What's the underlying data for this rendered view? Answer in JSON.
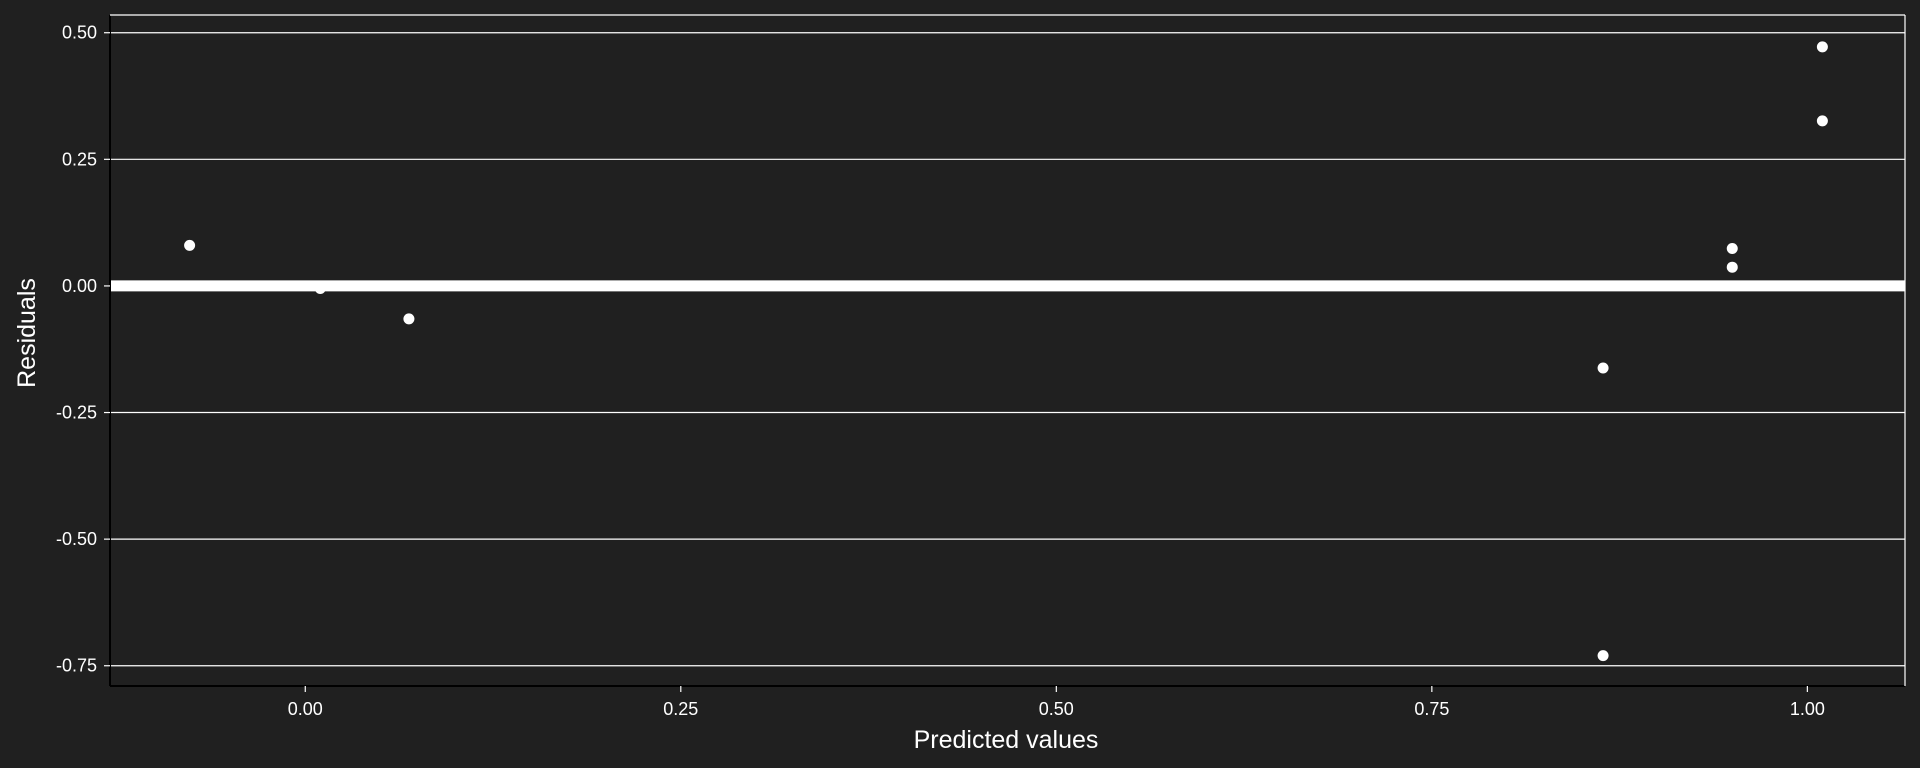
{
  "chart_data": {
    "type": "scatter",
    "xlabel": "Predicted values",
    "ylabel": "Residuals",
    "xlim": [
      -0.13,
      1.065
    ],
    "ylim": [
      -0.79,
      0.535
    ],
    "x_ticks": [
      "0.00",
      "0.25",
      "0.50",
      "0.75",
      "1.00"
    ],
    "x_tick_values": [
      0.0,
      0.25,
      0.5,
      0.75,
      1.0
    ],
    "y_ticks": [
      "0.50",
      "0.25",
      "0.00",
      "-0.25",
      "-0.50",
      "-0.75"
    ],
    "y_tick_values": [
      0.5,
      0.25,
      0.0,
      -0.25,
      -0.5,
      -0.75
    ],
    "grid": "horizontal",
    "reference_line": 0.0,
    "points": [
      {
        "x": -0.077,
        "y": 0.08
      },
      {
        "x": 0.01,
        "y": -0.005
      },
      {
        "x": 0.069,
        "y": -0.065
      },
      {
        "x": 0.864,
        "y": -0.162
      },
      {
        "x": 0.864,
        "y": -0.73
      },
      {
        "x": 0.95,
        "y": 0.074
      },
      {
        "x": 0.95,
        "y": 0.037
      },
      {
        "x": 1.01,
        "y": 0.472
      },
      {
        "x": 1.01,
        "y": 0.326
      }
    ],
    "colors": {
      "background": "#202020",
      "foreground": "#ffffff",
      "points": "#ffffff"
    }
  }
}
